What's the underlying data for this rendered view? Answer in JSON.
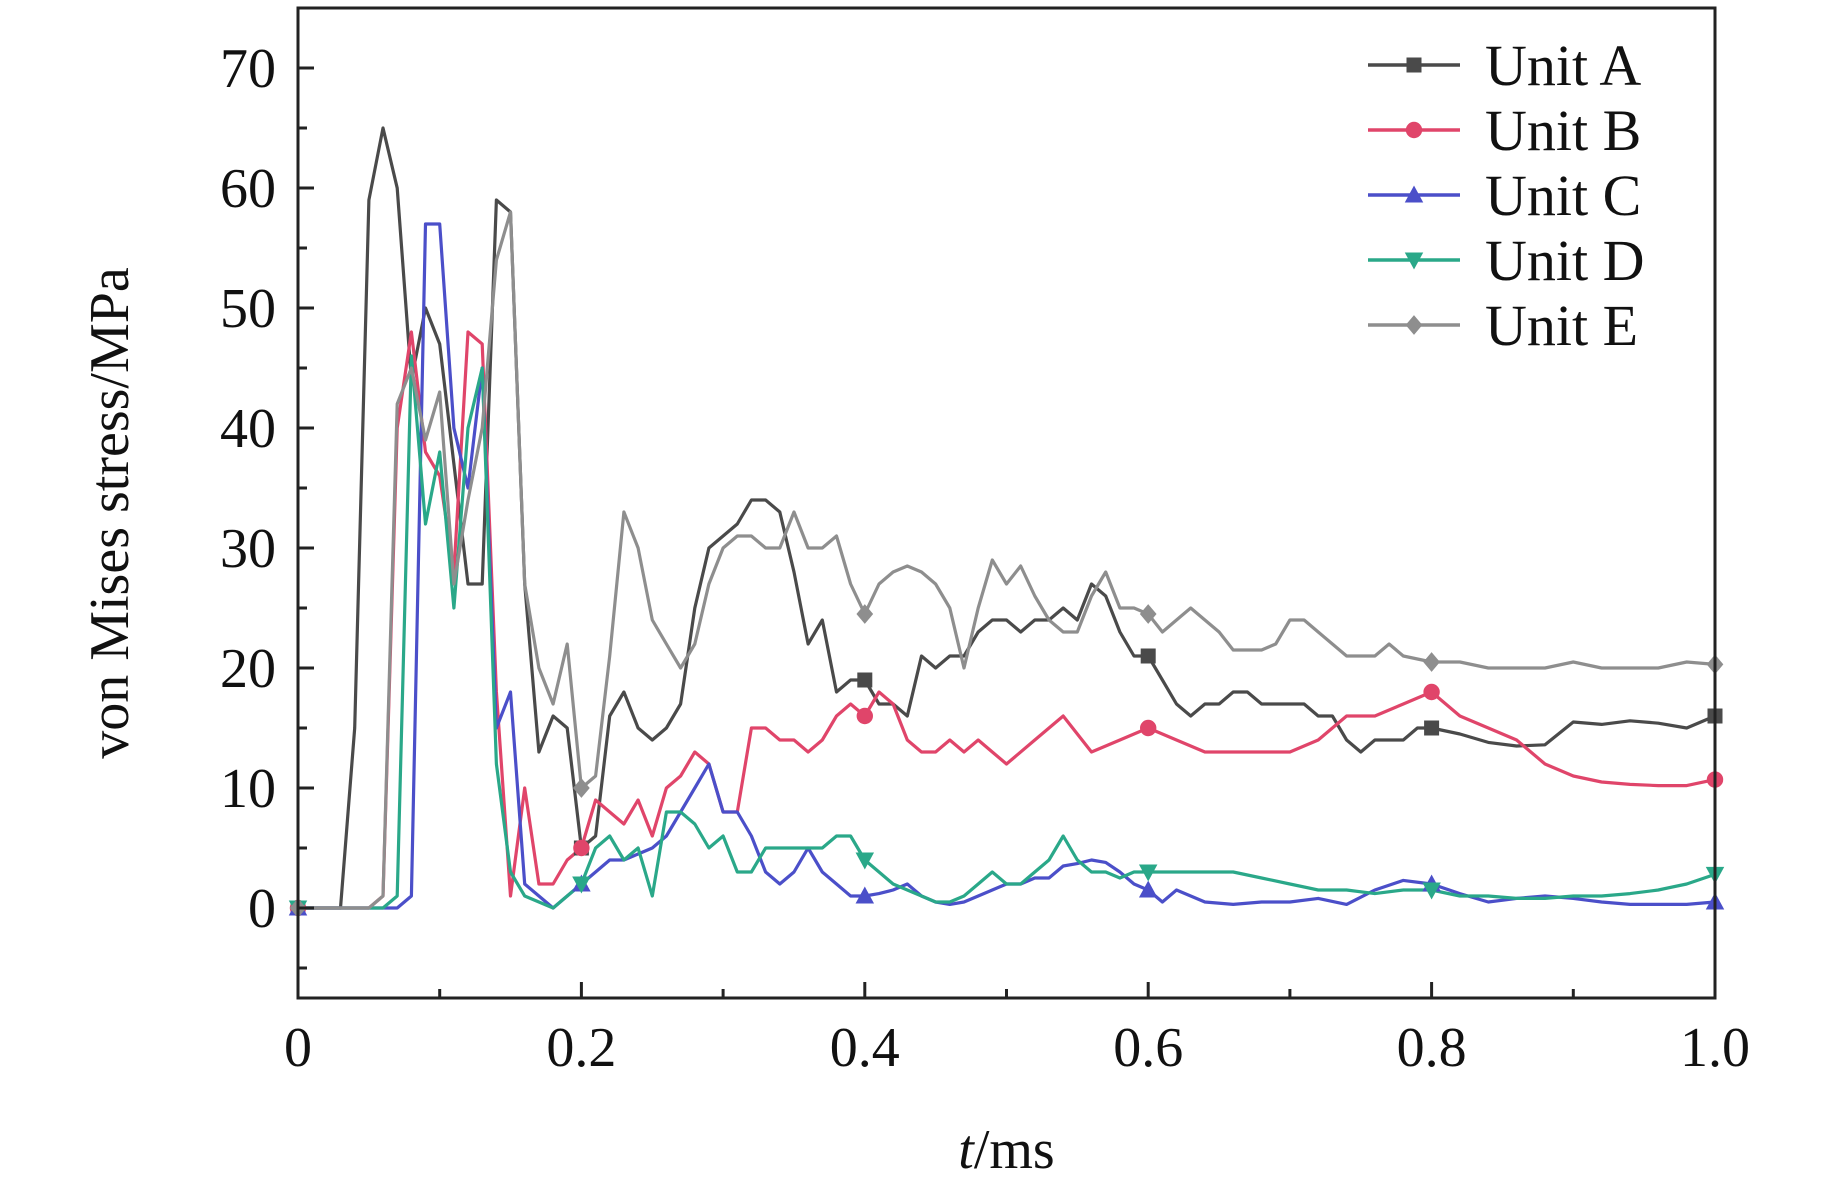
{
  "chart_data": {
    "type": "line",
    "xlabel_italic": "t",
    "xlabel_rest": "/ms",
    "ylabel": "von Mises stress/MPa",
    "xlim": [
      0,
      1.0
    ],
    "ylim": [
      -7.5,
      75
    ],
    "x_ticks": [
      0,
      0.2,
      0.4,
      0.6,
      0.8,
      1.0
    ],
    "x_tick_labels": [
      "0",
      "0.2",
      "0.4",
      "0.6",
      "0.8",
      "1.0"
    ],
    "y_ticks": [
      0,
      10,
      20,
      30,
      40,
      50,
      60,
      70
    ],
    "y_tick_labels": [
      "0",
      "10",
      "20",
      "30",
      "40",
      "50",
      "60",
      "70"
    ],
    "legend_position": "top-right",
    "grid": false,
    "series": [
      {
        "name": "Unit A",
        "color": "#4a4a4a",
        "marker": "square",
        "x": [
          0,
          0.03,
          0.04,
          0.05,
          0.06,
          0.07,
          0.08,
          0.09,
          0.1,
          0.11,
          0.12,
          0.13,
          0.14,
          0.15,
          0.16,
          0.17,
          0.18,
          0.19,
          0.2,
          0.21,
          0.22,
          0.23,
          0.24,
          0.25,
          0.26,
          0.27,
          0.28,
          0.29,
          0.3,
          0.31,
          0.32,
          0.33,
          0.34,
          0.35,
          0.36,
          0.37,
          0.38,
          0.39,
          0.4,
          0.41,
          0.42,
          0.43,
          0.44,
          0.45,
          0.46,
          0.47,
          0.48,
          0.49,
          0.5,
          0.51,
          0.52,
          0.53,
          0.54,
          0.55,
          0.56,
          0.57,
          0.58,
          0.59,
          0.6,
          0.61,
          0.62,
          0.63,
          0.64,
          0.65,
          0.66,
          0.67,
          0.68,
          0.69,
          0.7,
          0.71,
          0.72,
          0.73,
          0.74,
          0.75,
          0.76,
          0.77,
          0.78,
          0.79,
          0.8,
          0.82,
          0.84,
          0.86,
          0.88,
          0.9,
          0.92,
          0.94,
          0.96,
          0.98,
          1.0
        ],
        "y": [
          0,
          0,
          15,
          59,
          65,
          60,
          44,
          50,
          47,
          37,
          27,
          27,
          59,
          58,
          27,
          13,
          16,
          15,
          5,
          6,
          16,
          18,
          15,
          14,
          15,
          17,
          25,
          30,
          31,
          32,
          34,
          34,
          33,
          28,
          22,
          24,
          18,
          19,
          19,
          17,
          17,
          16,
          21,
          20,
          21,
          21,
          23,
          24,
          24,
          23,
          24,
          24,
          25,
          24,
          27,
          26,
          23,
          21,
          21,
          19,
          17,
          16,
          17,
          17,
          18,
          18,
          17,
          17,
          17,
          17,
          16,
          16,
          14,
          13,
          14,
          14,
          14,
          15,
          15,
          14.5,
          13.8,
          13.5,
          13.6,
          15.5,
          15.3,
          15.6,
          15.4,
          15.0,
          16
        ]
      },
      {
        "name": "Unit B",
        "color": "#e0456a",
        "marker": "circle",
        "x": [
          0,
          0.05,
          0.06,
          0.07,
          0.08,
          0.09,
          0.1,
          0.11,
          0.12,
          0.13,
          0.14,
          0.15,
          0.16,
          0.17,
          0.18,
          0.19,
          0.2,
          0.21,
          0.22,
          0.23,
          0.24,
          0.25,
          0.26,
          0.27,
          0.28,
          0.29,
          0.3,
          0.31,
          0.32,
          0.33,
          0.34,
          0.35,
          0.36,
          0.37,
          0.38,
          0.39,
          0.4,
          0.41,
          0.42,
          0.43,
          0.44,
          0.45,
          0.46,
          0.47,
          0.48,
          0.49,
          0.5,
          0.52,
          0.54,
          0.56,
          0.58,
          0.6,
          0.62,
          0.64,
          0.66,
          0.68,
          0.7,
          0.72,
          0.74,
          0.76,
          0.78,
          0.8,
          0.82,
          0.84,
          0.86,
          0.88,
          0.9,
          0.92,
          0.94,
          0.96,
          0.98,
          1.0
        ],
        "y": [
          0,
          0,
          1,
          40,
          48,
          38,
          36,
          28,
          48,
          47,
          18,
          1,
          10,
          2,
          2,
          4,
          5,
          9,
          8,
          7,
          9,
          6,
          10,
          11,
          13,
          12,
          8,
          8,
          15,
          15,
          14,
          14,
          13,
          14,
          16,
          17,
          16,
          18,
          17,
          14,
          13,
          13,
          14,
          13,
          14,
          13,
          12,
          14,
          16,
          13,
          14,
          15,
          14,
          13,
          13,
          13,
          13,
          14,
          16,
          16,
          17,
          18,
          16,
          15,
          14,
          12,
          11,
          10.5,
          10.3,
          10.2,
          10.2,
          10.7
        ]
      },
      {
        "name": "Unit C",
        "color": "#4b4fc9",
        "marker": "triangle-up",
        "x": [
          0,
          0.07,
          0.08,
          0.09,
          0.1,
          0.11,
          0.12,
          0.13,
          0.14,
          0.15,
          0.16,
          0.17,
          0.18,
          0.19,
          0.2,
          0.21,
          0.22,
          0.23,
          0.24,
          0.25,
          0.26,
          0.27,
          0.28,
          0.29,
          0.3,
          0.31,
          0.32,
          0.33,
          0.34,
          0.35,
          0.36,
          0.37,
          0.38,
          0.39,
          0.4,
          0.41,
          0.42,
          0.43,
          0.44,
          0.45,
          0.46,
          0.47,
          0.48,
          0.49,
          0.5,
          0.51,
          0.52,
          0.53,
          0.54,
          0.55,
          0.56,
          0.57,
          0.58,
          0.59,
          0.6,
          0.61,
          0.62,
          0.64,
          0.66,
          0.68,
          0.7,
          0.72,
          0.74,
          0.76,
          0.78,
          0.8,
          0.82,
          0.84,
          0.86,
          0.88,
          0.9,
          0.92,
          0.94,
          0.96,
          0.98,
          1.0
        ],
        "y": [
          0,
          0,
          1,
          57,
          57,
          40,
          35,
          45,
          15,
          18,
          2,
          1,
          0,
          1,
          2,
          3,
          4,
          4,
          4.5,
          5,
          6,
          8,
          10,
          12,
          8,
          8,
          6,
          3,
          2,
          3,
          5,
          3,
          2,
          1,
          1,
          1.2,
          1.5,
          2,
          1,
          0.5,
          0.3,
          0.5,
          1,
          1.5,
          2,
          2,
          2.5,
          2.5,
          3.5,
          3.7,
          4,
          3.8,
          3,
          2,
          1.5,
          0.5,
          1.5,
          0.5,
          0.3,
          0.5,
          0.5,
          0.8,
          0.3,
          1.5,
          2.3,
          2,
          1.2,
          0.5,
          0.8,
          1,
          0.8,
          0.5,
          0.3,
          0.3,
          0.3,
          0.5
        ]
      },
      {
        "name": "Unit D",
        "color": "#2aa889",
        "marker": "triangle-down",
        "x": [
          0,
          0.06,
          0.07,
          0.08,
          0.09,
          0.1,
          0.11,
          0.12,
          0.13,
          0.14,
          0.15,
          0.16,
          0.17,
          0.18,
          0.19,
          0.2,
          0.21,
          0.22,
          0.23,
          0.24,
          0.25,
          0.26,
          0.27,
          0.28,
          0.29,
          0.3,
          0.31,
          0.32,
          0.33,
          0.34,
          0.35,
          0.36,
          0.37,
          0.38,
          0.39,
          0.4,
          0.41,
          0.42,
          0.43,
          0.44,
          0.45,
          0.46,
          0.47,
          0.48,
          0.49,
          0.5,
          0.51,
          0.52,
          0.53,
          0.54,
          0.55,
          0.56,
          0.57,
          0.58,
          0.59,
          0.6,
          0.62,
          0.64,
          0.66,
          0.68,
          0.7,
          0.72,
          0.74,
          0.76,
          0.78,
          0.8,
          0.82,
          0.84,
          0.86,
          0.88,
          0.9,
          0.92,
          0.94,
          0.96,
          0.98,
          1.0
        ],
        "y": [
          0,
          0,
          1,
          46,
          32,
          38,
          25,
          40,
          45,
          12,
          3,
          1,
          0.5,
          0,
          1,
          2,
          5,
          6,
          4,
          5,
          1,
          8,
          8,
          7,
          5,
          6,
          3,
          3,
          5,
          5,
          5,
          5,
          5,
          6,
          6,
          4,
          3,
          2,
          1.5,
          1,
          0.5,
          0.5,
          1,
          2,
          3,
          2,
          2,
          3,
          4,
          6,
          4,
          3,
          3,
          2.5,
          3,
          3,
          3,
          3,
          3,
          2.5,
          2,
          1.5,
          1.5,
          1.2,
          1.5,
          1.5,
          1,
          1,
          0.8,
          0.8,
          1,
          1,
          1.2,
          1.5,
          2,
          2.8
        ]
      },
      {
        "name": "Unit E",
        "color": "#8e8e8e",
        "marker": "diamond",
        "x": [
          0,
          0.05,
          0.06,
          0.07,
          0.08,
          0.09,
          0.1,
          0.11,
          0.12,
          0.13,
          0.14,
          0.15,
          0.16,
          0.17,
          0.18,
          0.19,
          0.2,
          0.21,
          0.22,
          0.23,
          0.24,
          0.25,
          0.26,
          0.27,
          0.28,
          0.29,
          0.3,
          0.31,
          0.32,
          0.33,
          0.34,
          0.35,
          0.36,
          0.37,
          0.38,
          0.39,
          0.4,
          0.41,
          0.42,
          0.43,
          0.44,
          0.45,
          0.46,
          0.47,
          0.48,
          0.49,
          0.5,
          0.51,
          0.52,
          0.53,
          0.54,
          0.55,
          0.56,
          0.57,
          0.58,
          0.59,
          0.6,
          0.61,
          0.62,
          0.63,
          0.64,
          0.65,
          0.66,
          0.67,
          0.68,
          0.69,
          0.7,
          0.71,
          0.72,
          0.73,
          0.74,
          0.75,
          0.76,
          0.77,
          0.78,
          0.8,
          0.82,
          0.84,
          0.86,
          0.88,
          0.9,
          0.92,
          0.94,
          0.96,
          0.98,
          1.0
        ],
        "y": [
          0,
          0,
          1,
          42,
          45,
          39,
          43,
          27,
          34,
          40,
          54,
          58,
          27,
          20,
          17,
          22,
          10,
          11,
          21,
          33,
          30,
          24,
          22,
          20,
          22,
          27,
          30,
          31,
          31,
          30,
          30,
          33,
          30,
          30,
          31,
          27,
          24.5,
          27,
          28,
          28.5,
          28,
          27,
          25,
          20,
          25,
          29,
          27,
          28.5,
          26,
          24,
          23,
          23,
          26,
          28,
          25,
          25,
          24.5,
          23,
          24,
          25,
          24,
          23,
          21.5,
          21.5,
          21.5,
          22,
          24,
          24,
          23,
          22,
          21,
          21,
          21,
          22,
          21,
          20.5,
          20.5,
          20,
          20,
          20,
          20.5,
          20,
          20,
          20,
          20.5,
          20.3
        ]
      }
    ],
    "marker_x": [
      0.2,
      0.4,
      0.6,
      0.8,
      1.0
    ]
  }
}
